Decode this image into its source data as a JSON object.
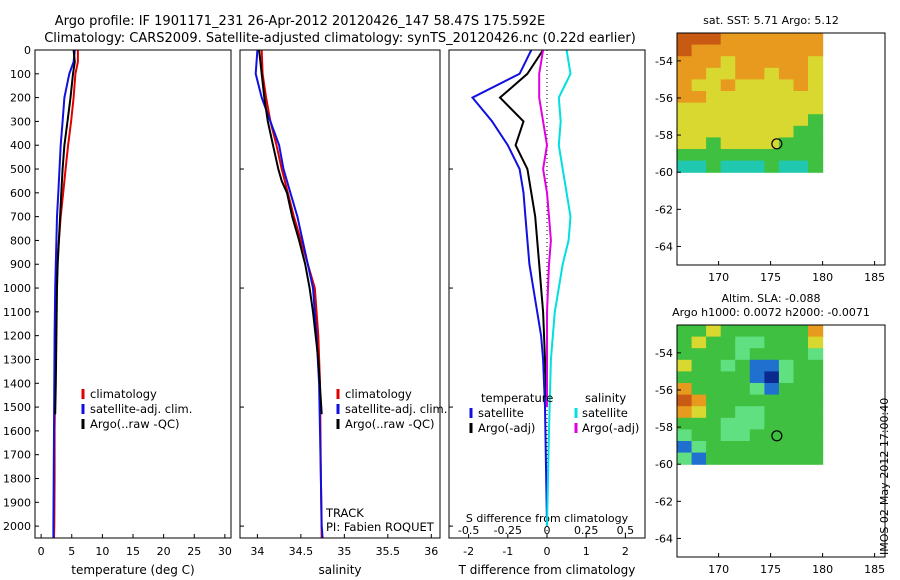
{
  "title_line1": "Argo profile: IF 1901171_231 26-Apr-2012 20120426_147 58.47S 175.592E",
  "title_line2": "Climatology: CARS2009. Satellite-adjusted climatology: synTS_20120426.nc (0.22d earlier)",
  "side_stamp": "IMOS 02-May-2012 17:00:40",
  "colors": {
    "red": "#e00000",
    "blue": "#1010e0",
    "black": "#000000",
    "cyan": "#00e0e0",
    "magenta": "#e000e0"
  },
  "chart_data": [
    {
      "type": "line",
      "xlabel": "temperature (deg C)",
      "xlim": [
        -1,
        31
      ],
      "ylim": [
        2050,
        0
      ],
      "xticks": [
        "0",
        "5",
        "10",
        "15",
        "20",
        "25",
        "30"
      ],
      "yticks": [
        "0",
        "100",
        "200",
        "300",
        "400",
        "500",
        "600",
        "700",
        "800",
        "900",
        "1000",
        "1100",
        "1200",
        "1300",
        "1400",
        "1500",
        "1600",
        "1700",
        "1800",
        "1900",
        "2000"
      ],
      "legend": [
        "climatology",
        "satellite-adj. clim.",
        "Argo(..raw -QC)"
      ],
      "series": [
        {
          "color": "red",
          "x": [
            6.0,
            6.0,
            5.6,
            5.3,
            4.9,
            4.4,
            4.0,
            3.6,
            3.2,
            2.9,
            2.6,
            2.5,
            2.4,
            2.3,
            2.2,
            2.2,
            2.15,
            2.1
          ],
          "y": [
            0,
            50,
            100,
            200,
            300,
            400,
            500,
            600,
            700,
            800,
            900,
            1000,
            1200,
            1400,
            1600,
            1800,
            2000,
            2050
          ]
        },
        {
          "color": "blue",
          "x": [
            5.5,
            5.3,
            4.6,
            3.8,
            3.5,
            3.2,
            3.0,
            2.8,
            2.6,
            2.5,
            2.4,
            2.3,
            2.2,
            2.15,
            2.1,
            2.05,
            2.0,
            2.0
          ],
          "y": [
            0,
            50,
            100,
            200,
            300,
            400,
            500,
            600,
            700,
            800,
            900,
            1000,
            1200,
            1400,
            1600,
            1800,
            2000,
            2050
          ]
        },
        {
          "color": "black",
          "x": [
            5.3,
            5.5,
            5.2,
            4.8,
            4.3,
            3.8,
            3.5,
            3.3,
            3.1,
            2.9,
            2.7,
            2.6,
            2.5,
            2.4,
            2.3
          ],
          "y": [
            0,
            50,
            100,
            200,
            300,
            400,
            500,
            600,
            700,
            800,
            900,
            1000,
            1200,
            1400,
            1530
          ]
        }
      ]
    },
    {
      "type": "line",
      "xlabel": "salinity",
      "xlim": [
        33.8,
        36.1
      ],
      "ylim": [
        2050,
        0
      ],
      "xticks": [
        "34",
        "34.5",
        "35",
        "35.5",
        "36"
      ],
      "legend": [
        "climatology",
        "satellite-adj. clim.",
        "Argo(..raw -QC)"
      ],
      "annotations": [
        "TRACK",
        "PI: Fabien ROQUET"
      ],
      "series": [
        {
          "color": "red",
          "x": [
            34.05,
            34.06,
            34.1,
            34.15,
            34.22,
            34.28,
            34.35,
            34.42,
            34.5,
            34.58,
            34.66,
            34.7,
            34.72,
            34.73,
            34.74
          ],
          "y": [
            0,
            100,
            200,
            300,
            400,
            500,
            600,
            700,
            800,
            900,
            1000,
            1200,
            1400,
            1800,
            2050
          ]
        },
        {
          "color": "blue",
          "x": [
            34.0,
            33.98,
            34.05,
            34.15,
            34.25,
            34.3,
            34.38,
            34.46,
            34.52,
            34.58,
            34.64,
            34.68,
            34.71,
            34.73,
            34.74,
            34.75
          ],
          "y": [
            0,
            100,
            200,
            300,
            400,
            500,
            600,
            700,
            800,
            900,
            1000,
            1200,
            1400,
            1800,
            2000,
            2050
          ]
        },
        {
          "color": "black",
          "x": [
            34.02,
            34.05,
            34.08,
            34.12,
            34.18,
            34.24,
            34.28,
            34.34,
            34.4,
            34.48,
            34.55,
            34.6,
            34.64,
            34.7,
            34.74
          ],
          "y": [
            0,
            100,
            200,
            300,
            400,
            500,
            550,
            600,
            700,
            800,
            900,
            1000,
            1100,
            1300,
            1530
          ]
        }
      ]
    },
    {
      "type": "line",
      "xlabel": "T difference from climatology",
      "xlabel_top": "S difference from climatology",
      "xlim": [
        -2.5,
        2.5
      ],
      "ylim": [
        2050,
        0
      ],
      "xticks": [
        "-2",
        "-1",
        "0",
        "1",
        "2"
      ],
      "xticks_top": [
        "-0.5",
        "-0.25",
        "0",
        "0.25",
        "0.5"
      ],
      "legend": [
        "temperature",
        "satellite",
        "Argo(-adj)",
        "salinity",
        "satellite",
        "Argo(-adj)"
      ],
      "series": [
        {
          "color": "blue",
          "name": "temperature satellite",
          "x": [
            -0.4,
            -0.7,
            -1.9,
            -1.4,
            -1.0,
            -0.7,
            -0.6,
            -0.55,
            -0.5,
            -0.45,
            -0.35,
            -0.25,
            -0.15,
            -0.1,
            -0.05,
            -0.02,
            0.0
          ],
          "y": [
            0,
            100,
            200,
            300,
            400,
            500,
            600,
            700,
            800,
            900,
            1000,
            1100,
            1200,
            1300,
            1500,
            1800,
            2000
          ]
        },
        {
          "color": "black",
          "name": "temperature Argo(-adj)",
          "x": [
            -0.1,
            -0.5,
            -1.2,
            -0.6,
            -0.8,
            -0.5,
            -0.4,
            -0.3,
            -0.25,
            -0.2,
            -0.15,
            -0.1,
            -0.05,
            0.0
          ],
          "y": [
            0,
            100,
            200,
            300,
            400,
            500,
            600,
            700,
            800,
            900,
            1000,
            1100,
            1300,
            1500
          ]
        },
        {
          "color": "cyan",
          "name": "salinity satellite",
          "x": [
            0.5,
            0.6,
            0.3,
            0.35,
            0.3,
            0.4,
            0.5,
            0.6,
            0.55,
            0.4,
            0.3,
            0.2,
            0.1,
            0.05,
            0.0
          ],
          "y": [
            0,
            100,
            200,
            300,
            400,
            500,
            600,
            700,
            800,
            900,
            1000,
            1100,
            1300,
            1600,
            2000
          ]
        },
        {
          "color": "magenta",
          "name": "salinity Argo(-adj)",
          "x": [
            -0.1,
            -0.2,
            -0.2,
            -0.1,
            0.0,
            -0.1,
            0.0,
            0.05,
            0.1,
            0.05,
            0.0,
            0.0
          ],
          "y": [
            0,
            100,
            200,
            300,
            400,
            500,
            600,
            700,
            800,
            900,
            1100,
            1500
          ]
        }
      ]
    },
    {
      "type": "heatmap",
      "title": "sat. SST: 5.71  Argo: 5.12",
      "xlim": [
        166,
        186
      ],
      "ylim": [
        -65,
        -52.5
      ],
      "xticks": [
        "170",
        "175",
        "180",
        "185"
      ],
      "yticks": [
        "-54",
        "-56",
        "-58",
        "-60",
        "-62",
        "-64"
      ],
      "grid_x": [
        166,
        180
      ],
      "grid_y": [
        -60,
        -52.5
      ],
      "rows_north_to_south": [
        "RRROOOOOOO",
        "ROOOOOOOOO",
        "OOOYOOOOOY",
        "OOYYOOYOOY",
        "OYYOYYYYOY",
        "OOYYYYYYYY",
        "YYYYYYYYYY",
        "YYYYYYYYYG",
        "YYYYYYYYGG",
        "YYGYYYYGGG",
        "GGGGGGGGGG",
        "CCGCCCGCCG"
      ],
      "marker": {
        "lon": 175.6,
        "lat": -58.47
      }
    },
    {
      "type": "heatmap",
      "title": "Altim. SLA: -0.088",
      "subtitle": "Argo h1000: 0.0072 h2000: -0.0071",
      "xlim": [
        166,
        186
      ],
      "ylim": [
        -65,
        -52.5
      ],
      "xticks": [
        "170",
        "175",
        "180",
        "185"
      ],
      "yticks": [
        "-54",
        "-56",
        "-58",
        "-60",
        "-62",
        "-64"
      ],
      "grid_x": [
        166,
        180
      ],
      "grid_y": [
        -60,
        -52.5
      ],
      "rows_north_to_south": [
        "GGYGGGGGGO",
        "GYGGLLGGGY",
        "GGGGLGGGGL",
        "YGGLGBBLGG",
        "GGGGGBNLGG",
        "OGGGGLBGGG",
        "ROGGGGGGGG",
        "OYGGLLGGGG",
        "GGGLLLGGGG",
        "LGGLLGGGGG",
        "BLGGGGGGGG",
        "LBGGGGGGGG"
      ],
      "marker": {
        "lon": 175.6,
        "lat": -58.47
      }
    }
  ]
}
